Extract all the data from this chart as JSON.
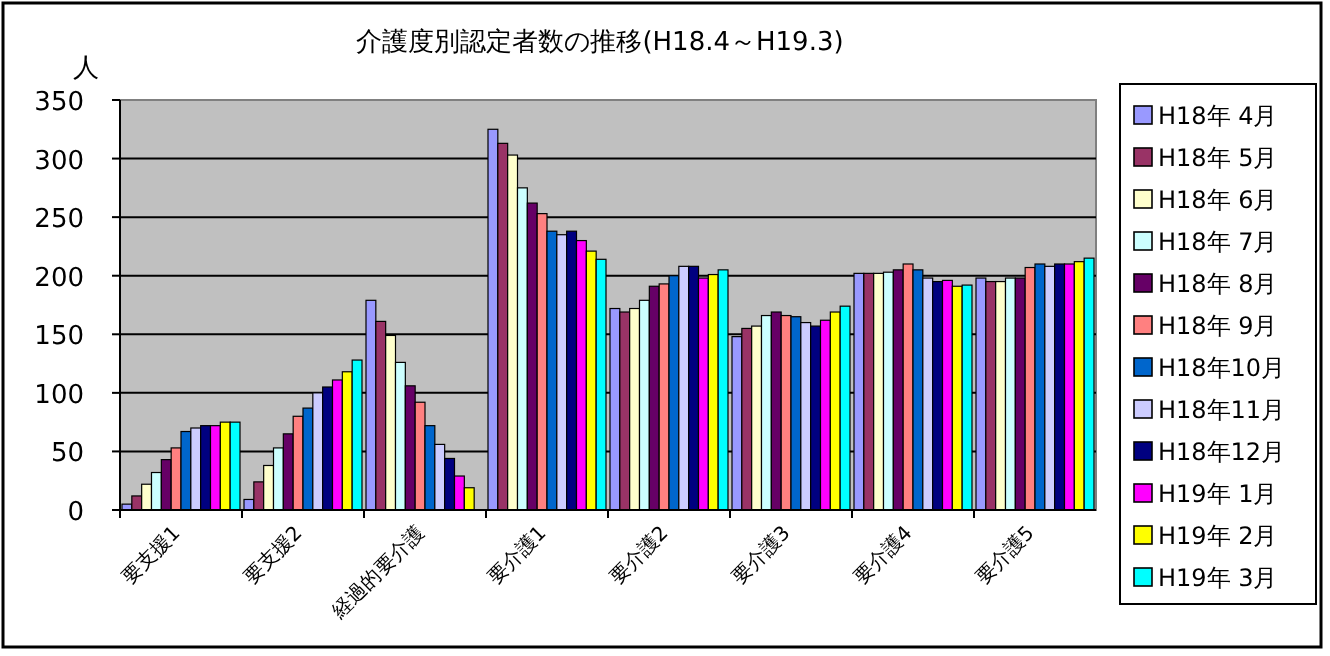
{
  "chart_data": {
    "type": "bar",
    "title": "介護度別認定者数の推移(H18.4～H19.3)",
    "ylabel": "人",
    "categories": [
      "要支援1",
      "要支援2",
      "経過的要介護",
      "要介護1",
      "要介護2",
      "要介護3",
      "要介護4",
      "要介護5"
    ],
    "ylim": [
      0,
      350
    ],
    "yticks": [
      0,
      50,
      100,
      150,
      200,
      250,
      300,
      350
    ],
    "grid": "y",
    "legend": "right",
    "series": [
      {
        "name": "H18年 4月",
        "color": "#9999ff",
        "values": [
          5,
          9,
          179,
          325,
          172,
          148,
          202,
          198
        ]
      },
      {
        "name": "H18年 5月",
        "color": "#993366",
        "values": [
          12,
          24,
          161,
          313,
          169,
          155,
          202,
          195
        ]
      },
      {
        "name": "H18年 6月",
        "color": "#ffffcc",
        "values": [
          22,
          38,
          149,
          303,
          172,
          157,
          202,
          195
        ]
      },
      {
        "name": "H18年 7月",
        "color": "#ccffff",
        "values": [
          32,
          53,
          126,
          275,
          179,
          166,
          203,
          198
        ]
      },
      {
        "name": "H18年 8月",
        "color": "#660066",
        "values": [
          43,
          65,
          106,
          262,
          191,
          169,
          205,
          198
        ]
      },
      {
        "name": "H18年 9月",
        "color": "#ff8080",
        "values": [
          53,
          80,
          92,
          253,
          193,
          166,
          210,
          207
        ]
      },
      {
        "name": "H18年10月",
        "color": "#0066cc",
        "values": [
          67,
          87,
          72,
          238,
          200,
          165,
          205,
          210
        ]
      },
      {
        "name": "H18年11月",
        "color": "#ccccff",
        "values": [
          70,
          100,
          56,
          235,
          208,
          160,
          198,
          208
        ]
      },
      {
        "name": "H18年12月",
        "color": "#000080",
        "values": [
          72,
          105,
          44,
          238,
          208,
          157,
          195,
          210
        ]
      },
      {
        "name": "H19年 1月",
        "color": "#ff00ff",
        "values": [
          72,
          111,
          29,
          230,
          198,
          162,
          196,
          210
        ]
      },
      {
        "name": "H19年 2月",
        "color": "#ffff00",
        "values": [
          75,
          118,
          19,
          221,
          201,
          169,
          191,
          212
        ]
      },
      {
        "name": "H19年 3月",
        "color": "#00ffff",
        "values": [
          75,
          128,
          null,
          214,
          205,
          174,
          192,
          215
        ]
      }
    ]
  }
}
